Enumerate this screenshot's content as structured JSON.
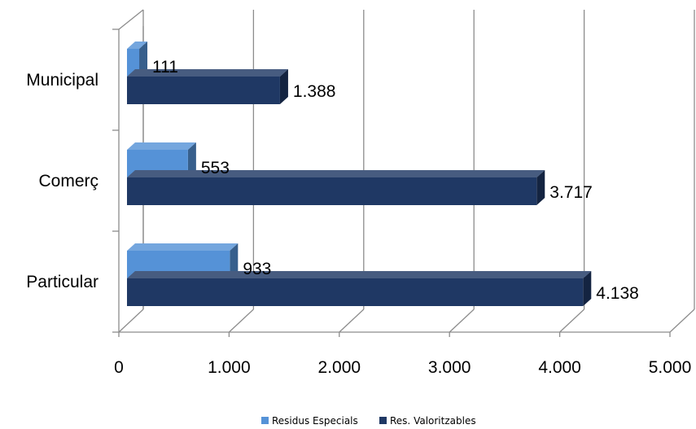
{
  "chart_data": {
    "type": "bar",
    "orientation": "horizontal",
    "style": "3d-clustered",
    "categories": [
      "Municipal",
      "Comerç",
      "Particular"
    ],
    "series": [
      {
        "name": "Residus Especials",
        "values": [
          111,
          553,
          933
        ],
        "labels": [
          "111",
          "553",
          "933"
        ],
        "color": "#5592D7"
      },
      {
        "name": "Res. Valoritzables",
        "values": [
          1388,
          3717,
          4138
        ],
        "labels": [
          "1.388",
          "3.717",
          "4.138"
        ],
        "color": "#1F3864"
      }
    ],
    "xlim": [
      0,
      5000
    ],
    "x_ticks": [
      0,
      1000,
      2000,
      3000,
      4000,
      5000
    ],
    "x_tick_labels": [
      "0",
      "1.000",
      "2.000",
      "3.000",
      "4.000",
      "5.000"
    ],
    "grid": true,
    "legend_position": "bottom"
  }
}
